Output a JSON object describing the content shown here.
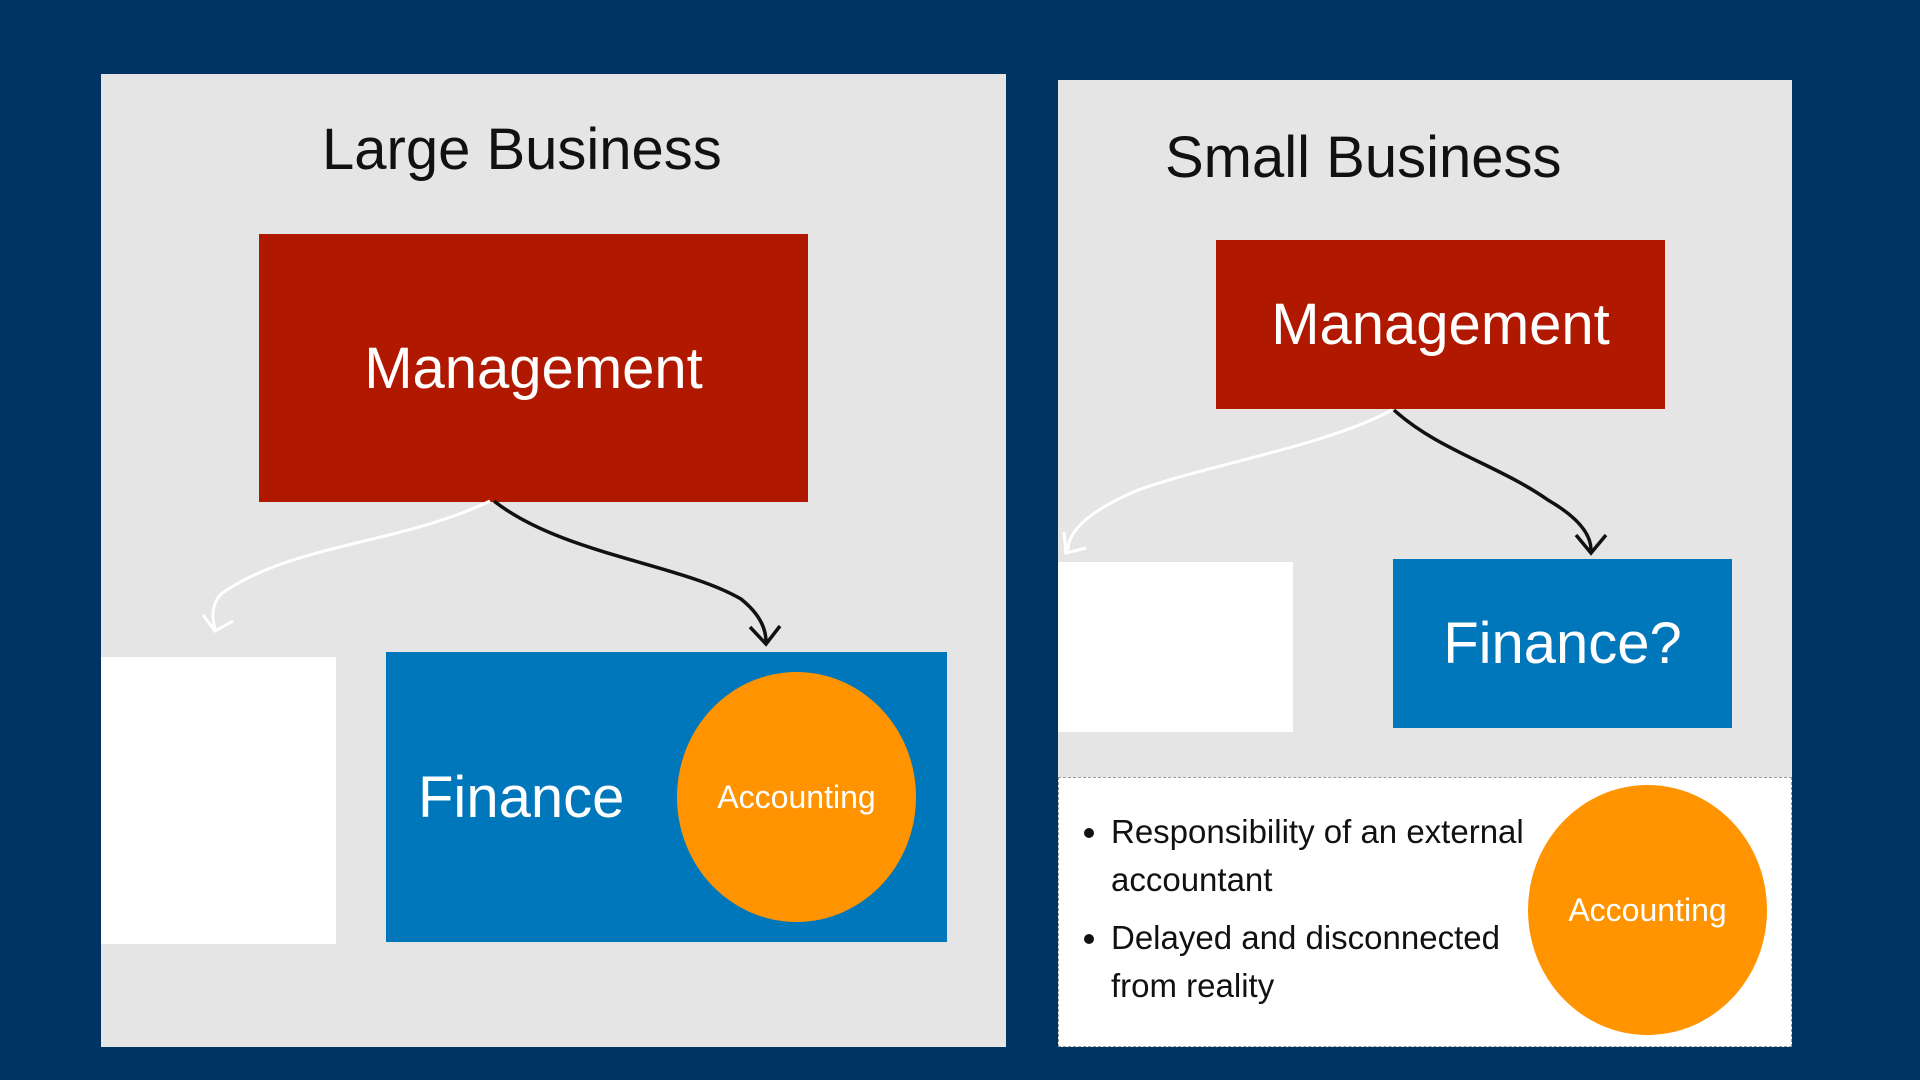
{
  "large": {
    "title": "Large Business",
    "management": "Management",
    "finance": "Finance",
    "accounting": "Accounting"
  },
  "small": {
    "title": "Small Business",
    "management": "Management",
    "finance": "Finance?",
    "accounting": "Accounting",
    "notes": [
      "Responsibility of an external accountant",
      "Delayed and disconnected from reality"
    ]
  },
  "colors": {
    "background": "#003462",
    "panel": "#e5e5e5",
    "management": "#b01900",
    "finance": "#0076bb",
    "accounting": "#ff9300",
    "blank": "#ffffff"
  }
}
